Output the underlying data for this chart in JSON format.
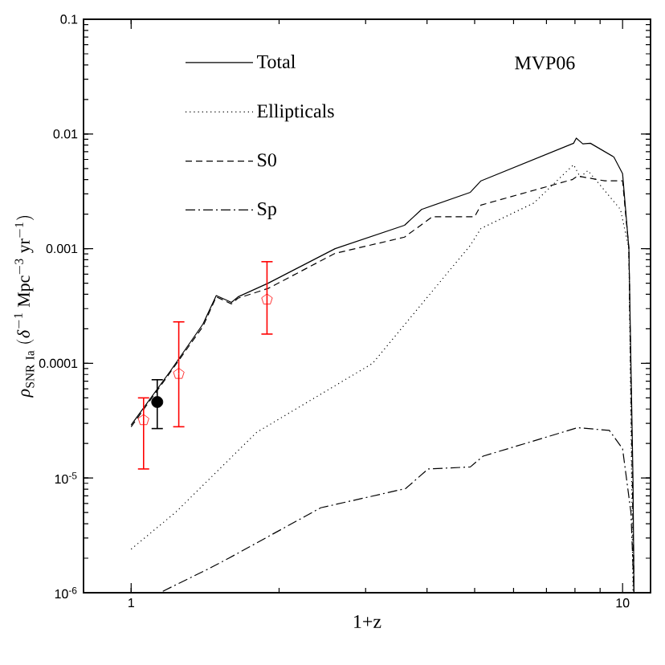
{
  "chart_data": {
    "type": "line",
    "xlabel": "1+z",
    "ylabel": "\\rho_{\\mathrm{SNR\\ Ia}}\\ (\\delta^{-1}\\ \\mathrm{Mpc}^{-3}\\ \\mathrm{yr}^{-1})",
    "log": "xy",
    "xlim": [
      0.8,
      11.4
    ],
    "ylim": [
      1e-06,
      0.1
    ],
    "xticks": [
      1,
      10
    ],
    "yticks": [
      {
        "value": 1e-06,
        "label": "10$^{-6}$"
      },
      {
        "value": 1e-05,
        "label": "10$^{-5}$"
      },
      0.0001,
      0.001,
      0.01,
      0.1
    ],
    "legend": "top left",
    "annotations": [
      "MVP06"
    ],
    "series": [
      {
        "name": "Total",
        "color": "#000000",
        "line_style": "solid",
        "x": [
          1.0,
          1.2,
          1.4,
          1.49,
          1.6,
          1.65,
          1.9,
          2.6,
          3.6,
          3.9,
          4.9,
          5.15,
          7.95,
          8.05,
          8.3,
          8.6,
          9.6,
          10.0,
          10.3,
          10.5,
          10.55
        ],
        "values": [
          2.9e-05,
          8.5e-05,
          0.00022,
          0.00039,
          0.00034,
          0.00038,
          0.0005,
          0.001,
          0.0016,
          0.0022,
          0.0031,
          0.0039,
          0.0083,
          0.0092,
          0.0082,
          0.0083,
          0.0063,
          0.0045,
          0.001,
          1e-05,
          1e-06
        ]
      },
      {
        "name": "Ellipticals",
        "color": "#000000",
        "line_style": "dotted",
        "x": [
          1.0,
          1.23,
          1.8,
          3.1,
          4.9,
          5.15,
          6.6,
          7.95,
          8.2,
          8.5,
          9.9,
          10.3,
          10.5
        ],
        "values": [
          2.4e-06,
          5e-06,
          2.5e-05,
          0.0001,
          0.00107,
          0.0015,
          0.0025,
          0.0054,
          0.0042,
          0.0048,
          0.0022,
          0.001,
          1e-06
        ]
      },
      {
        "name": "S0",
        "color": "#000000",
        "line_style": "dashed",
        "x": [
          1.0,
          1.2,
          1.4,
          1.49,
          1.6,
          1.65,
          1.9,
          2.6,
          3.6,
          4.1,
          5.0,
          5.15,
          7.9,
          8.1,
          9.2,
          10.0,
          10.3,
          10.55
        ],
        "values": [
          2.8e-05,
          8.3e-05,
          0.00021,
          0.00038,
          0.00033,
          0.00037,
          0.00045,
          0.00091,
          0.00126,
          0.0019,
          0.0019,
          0.0024,
          0.004,
          0.0043,
          0.0039,
          0.0039,
          0.001,
          1e-06
        ]
      },
      {
        "name": "Sp",
        "color": "#000000",
        "line_style": "dashdot",
        "x": [
          1.16,
          1.43,
          1.58,
          2.43,
          3.62,
          4.02,
          4.9,
          5.2,
          8.1,
          9.4,
          10.0,
          10.4,
          10.55
        ],
        "values": [
          1.03e-06,
          1.6e-06,
          2e-06,
          5.5e-06,
          8.1e-06,
          1.2e-05,
          1.25e-05,
          1.55e-05,
          2.75e-05,
          2.6e-05,
          1.8e-05,
          5e-06,
          1e-06
        ]
      },
      {
        "type": "scatter",
        "color": "#ff0000",
        "x": [
          1.06,
          1.25,
          1.89
        ],
        "values": [
          3.2e-05,
          8.1e-05,
          0.00036
        ],
        "errors": [
          [
            1.2e-05,
            5e-05
          ],
          [
            2.8e-05,
            0.00023
          ],
          [
            0.00018,
            0.00077
          ]
        ]
      },
      {
        "type": "scatter",
        "color": "#000000",
        "marker": "circle",
        "x": [
          1.13
        ],
        "values": [
          4.6e-05
        ],
        "errors": [
          [
            2.7e-05,
            7.2e-05
          ]
        ]
      }
    ]
  }
}
